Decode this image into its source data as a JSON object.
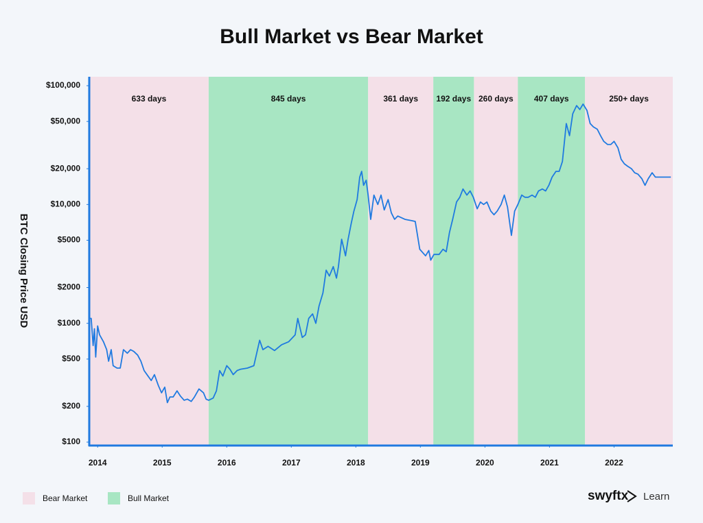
{
  "chart_data": {
    "type": "line",
    "title": "Bull Market vs Bear Market",
    "y_label": "BTC Closing Price USD",
    "log_scale_y": true,
    "color": "#1f7ae0",
    "xlim": [
      2013.87,
      2022.91
    ],
    "xticks": [
      2014,
      2015,
      2016,
      2017,
      2018,
      2019,
      2020,
      2021,
      2022
    ],
    "ylim": [
      100,
      100000
    ],
    "yticks": [
      {
        "value": 100,
        "label": "$100"
      },
      {
        "value": 200,
        "label": "$200"
      },
      {
        "value": 500,
        "label": "$500"
      },
      {
        "value": 1000,
        "label": "$1000"
      },
      {
        "value": 2000,
        "label": "$2000"
      },
      {
        "value": 5000,
        "label": "$5000"
      },
      {
        "value": 10000,
        "label": "$10,000"
      },
      {
        "value": 20000,
        "label": "$20,000"
      },
      {
        "value": 50000,
        "label": "$50,000"
      },
      {
        "value": 100000,
        "label": "$100,000"
      }
    ],
    "legend": [
      {
        "name": "Bear Market",
        "color": "#f4e0e8"
      },
      {
        "name": "Bull Market",
        "color": "#a8e6c3"
      }
    ],
    "regions": [
      {
        "start": 2013.87,
        "end": 2015.72,
        "label": "633 days",
        "color": "#f4e0e8"
      },
      {
        "start": 2015.72,
        "end": 2018.19,
        "label": "845 days",
        "color": "#a8e6c3"
      },
      {
        "start": 2018.19,
        "end": 2019.2,
        "label": "361 days",
        "color": "#f4e0e8"
      },
      {
        "start": 2019.2,
        "end": 2019.83,
        "label": "192 days",
        "color": "#a8e6c3"
      },
      {
        "start": 2019.83,
        "end": 2020.51,
        "label": "260 days",
        "color": "#f4e0e8"
      },
      {
        "start": 2020.51,
        "end": 2021.55,
        "label": "407 days",
        "color": "#a8e6c3"
      },
      {
        "start": 2021.55,
        "end": 2022.91,
        "label": "250+ days",
        "color": "#f4e0e8"
      }
    ],
    "x": [
      2013.87,
      2013.9,
      2013.93,
      2013.95,
      2013.97,
      2014.0,
      2014.03,
      2014.09,
      2014.14,
      2014.17,
      2014.21,
      2014.24,
      2014.3,
      2014.35,
      2014.4,
      2014.46,
      2014.51,
      2014.56,
      2014.62,
      2014.67,
      2014.72,
      2014.78,
      2014.83,
      2014.88,
      2014.94,
      2014.99,
      2015.04,
      2015.08,
      2015.12,
      2015.17,
      2015.23,
      2015.28,
      2015.34,
      2015.39,
      2015.45,
      2015.5,
      2015.57,
      2015.64,
      2015.68,
      2015.72,
      2015.79,
      2015.84,
      2015.89,
      2015.94,
      2016.0,
      2016.05,
      2016.1,
      2016.16,
      2016.21,
      2016.32,
      2016.42,
      2016.51,
      2016.56,
      2016.64,
      2016.74,
      2016.85,
      2016.96,
      2017.06,
      2017.1,
      2017.17,
      2017.22,
      2017.27,
      2017.33,
      2017.38,
      2017.43,
      2017.49,
      2017.54,
      2017.59,
      2017.65,
      2017.7,
      2017.73,
      2017.78,
      2017.84,
      2017.88,
      2017.93,
      2017.97,
      2018.02,
      2018.06,
      2018.09,
      2018.12,
      2018.16,
      2018.19,
      2018.23,
      2018.28,
      2018.34,
      2018.39,
      2018.44,
      2018.5,
      2018.55,
      2018.6,
      2018.65,
      2018.76,
      2018.87,
      2018.92,
      2018.99,
      2019.08,
      2019.13,
      2019.16,
      2019.21,
      2019.29,
      2019.35,
      2019.4,
      2019.45,
      2019.5,
      2019.56,
      2019.61,
      2019.66,
      2019.72,
      2019.77,
      2019.82,
      2019.88,
      2019.93,
      2019.98,
      2020.03,
      2020.09,
      2020.14,
      2020.19,
      2020.25,
      2020.3,
      2020.35,
      2020.41,
      2020.46,
      2020.51,
      2020.57,
      2020.62,
      2020.67,
      2020.73,
      2020.78,
      2020.83,
      2020.89,
      2020.94,
      2020.99,
      2021.04,
      2021.1,
      2021.15,
      2021.2,
      2021.26,
      2021.31,
      2021.36,
      2021.42,
      2021.47,
      2021.52,
      2021.58,
      2021.63,
      2021.68,
      2021.74,
      2021.79,
      2021.84,
      2021.9,
      2021.95,
      2022.0,
      2022.06,
      2022.11,
      2022.16,
      2022.21,
      2022.27,
      2022.32,
      2022.37,
      2022.43,
      2022.48,
      2022.53,
      2022.59,
      2022.64,
      2022.75,
      2022.88
    ],
    "values": [
      1100,
      1100,
      650,
      900,
      520,
      950,
      800,
      700,
      600,
      480,
      600,
      440,
      420,
      420,
      600,
      560,
      600,
      580,
      540,
      480,
      400,
      360,
      330,
      370,
      300,
      260,
      290,
      215,
      240,
      240,
      270,
      245,
      225,
      230,
      220,
      240,
      280,
      260,
      230,
      225,
      235,
      270,
      400,
      360,
      440,
      410,
      370,
      400,
      410,
      420,
      440,
      720,
      600,
      640,
      590,
      660,
      700,
      800,
      1100,
      760,
      800,
      1100,
      1200,
      1000,
      1400,
      1800,
      2800,
      2500,
      3000,
      2400,
      3000,
      5100,
      3700,
      5100,
      7000,
      8800,
      11000,
      17000,
      19000,
      14500,
      16000,
      12000,
      7500,
      12000,
      10000,
      12000,
      9000,
      11000,
      8500,
      7500,
      8000,
      7500,
      7300,
      7200,
      4200,
      3700,
      4100,
      3400,
      3800,
      3800,
      4200,
      4000,
      5800,
      7500,
      10500,
      11500,
      13500,
      12000,
      13000,
      11500,
      9200,
      10500,
      10000,
      10500,
      8800,
      8200,
      8800,
      10000,
      12000,
      9500,
      5500,
      8800,
      10000,
      12000,
      11500,
      11500,
      12000,
      11500,
      13000,
      13500,
      13000,
      14500,
      17000,
      19000,
      19000,
      23000,
      48000,
      38000,
      58000,
      68000,
      63000,
      70000,
      62000,
      48000,
      45000,
      43000,
      38000,
      34000,
      32000,
      32000,
      34000,
      30000,
      24000,
      22000,
      21000,
      20000,
      18500,
      18000,
      16500,
      14500,
      16500,
      18500,
      17000,
      17000,
      17000
    ]
  },
  "brand": {
    "name": "swyftx",
    "section": "Learn"
  }
}
